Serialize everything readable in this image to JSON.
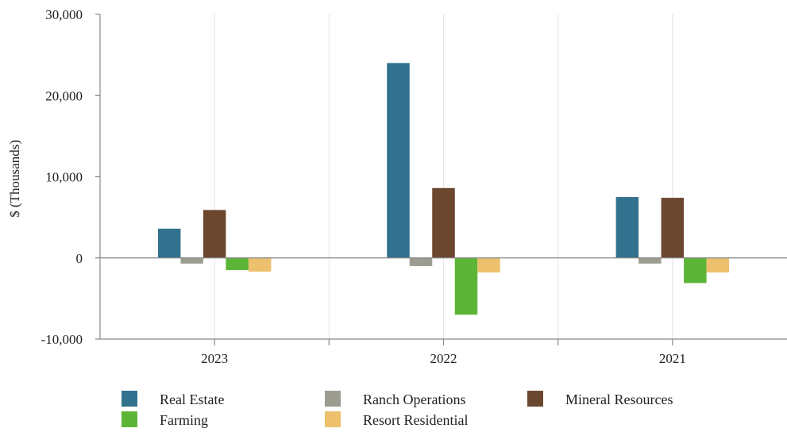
{
  "chart_data": {
    "type": "bar",
    "title": "",
    "xlabel": "",
    "ylabel": "$ (Thousands)",
    "ylim": [
      -10000,
      30000
    ],
    "yticks": [
      -10000,
      0,
      10000,
      20000,
      30000
    ],
    "ytick_labels": [
      "-10,000",
      "0",
      "10,000",
      "20,000",
      "30,000"
    ],
    "categories": [
      "2023",
      "2022",
      "2021"
    ],
    "grid": "vertical",
    "legend_position": "bottom",
    "series": [
      {
        "name": "Real Estate",
        "color": "#33728f",
        "values": [
          3600,
          24000,
          7500
        ]
      },
      {
        "name": "Ranch Operations",
        "color": "#9c9c91",
        "values": [
          -700,
          -1000,
          -700
        ]
      },
      {
        "name": "Mineral Resources",
        "color": "#6b4730",
        "values": [
          5900,
          8600,
          7400
        ]
      },
      {
        "name": "Farming",
        "color": "#5db538",
        "values": [
          -1500,
          -7000,
          -3100
        ]
      },
      {
        "name": "Resort Residential",
        "color": "#edc06e",
        "values": [
          -1700,
          -1800,
          -1800
        ]
      }
    ]
  }
}
